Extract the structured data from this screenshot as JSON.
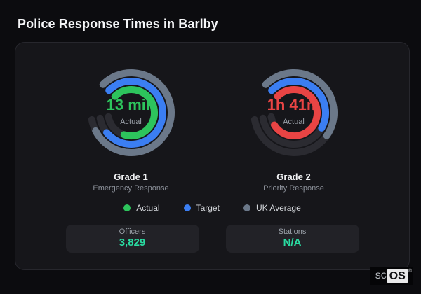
{
  "page_title": "Police Response Times in Barlby",
  "colors": {
    "actual_green": "#2dc45c",
    "target_blue": "#3b7ef2",
    "uk_average_gray": "#6b7889",
    "actual_red": "#e94444",
    "track": "#2b2b31",
    "stat_value_teal": "#2adca2"
  },
  "chart_data": [
    {
      "type": "gauge",
      "title": "Grade 1",
      "subtitle": "Emergency Response",
      "center_value": "13 min",
      "center_label": "Actual",
      "value_color": "#2dc45c",
      "start_angle": -45,
      "total_sweep": 305,
      "rings": [
        {
          "name": "UK Average",
          "color": "#6b7889",
          "radius": 57,
          "sweep": 288
        },
        {
          "name": "Target",
          "color": "#3b7ef2",
          "radius": 45,
          "sweep": 276
        },
        {
          "name": "Actual",
          "color": "#2dc45c",
          "radius": 33,
          "sweep": 243
        }
      ]
    },
    {
      "type": "gauge",
      "title": "Grade 2",
      "subtitle": "Priority Response",
      "center_value": "1h 41m",
      "center_label": "Actual",
      "value_color": "#e94444",
      "start_angle": -45,
      "total_sweep": 305,
      "rings": [
        {
          "name": "UK Average",
          "color": "#6b7889",
          "radius": 57,
          "sweep": 170
        },
        {
          "name": "Target",
          "color": "#3b7ef2",
          "radius": 45,
          "sweep": 164
        },
        {
          "name": "Actual",
          "color": "#e94444",
          "radius": 33,
          "sweep": 283
        }
      ]
    }
  ],
  "legend": [
    {
      "label": "Actual",
      "color": "#2dc45c"
    },
    {
      "label": "Target",
      "color": "#3b7ef2"
    },
    {
      "label": "UK Average",
      "color": "#6b7889"
    }
  ],
  "stats": [
    {
      "label": "Officers",
      "value": "3,829"
    },
    {
      "label": "Stations",
      "value": "N/A"
    }
  ],
  "watermark": {
    "prefix": "sc",
    "brand": "OS",
    "reg": "®"
  }
}
